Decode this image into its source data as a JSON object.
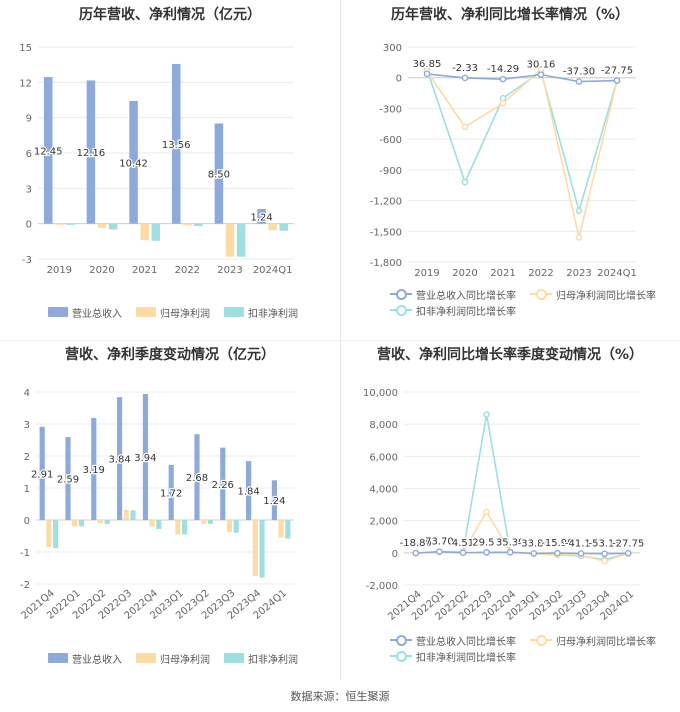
{
  "source_text": "数据来源：恒生聚源",
  "colors": {
    "revenue": "#8eaadc",
    "net_profit": "#fcdca4",
    "deducted_profit": "#9edfe1",
    "revenue_line": "#8eaadc",
    "net_line": "#fcdca4",
    "deducted_line": "#9edfe1"
  },
  "chart_data": [
    {
      "id": "annual_amounts",
      "type": "bar",
      "title": "历年营收、净利情况（亿元）",
      "categories": [
        "2019",
        "2020",
        "2021",
        "2022",
        "2023",
        "2024Q1"
      ],
      "yticks": [
        "15",
        "12",
        "9",
        "6",
        "3",
        "0",
        "-3"
      ],
      "ylim": [
        -3,
        15
      ],
      "series": [
        {
          "name": "营业总收入",
          "values": [
            12.45,
            12.16,
            10.42,
            13.56,
            8.5,
            1.24
          ],
          "labels": [
            "12.45",
            "12.16",
            "10.42",
            "13.56",
            "8.50",
            "1.24"
          ]
        },
        {
          "name": "归母净利润",
          "values": [
            -0.1,
            -0.35,
            -1.4,
            -0.15,
            -2.8,
            -0.55
          ]
        },
        {
          "name": "扣非净利润",
          "values": [
            -0.1,
            -0.5,
            -1.45,
            -0.2,
            -2.8,
            -0.6
          ]
        }
      ],
      "legend": "bottom"
    },
    {
      "id": "annual_growth",
      "type": "line",
      "title": "历年营收、净利同比增长率情况（%）",
      "categories": [
        "2019",
        "2020",
        "2021",
        "2022",
        "2023",
        "2024Q1"
      ],
      "yticks": [
        "300",
        "0",
        "-300",
        "-600",
        "-900",
        "-1,200",
        "-1,500",
        "-1,800"
      ],
      "ylim": [
        -1800,
        300
      ],
      "series": [
        {
          "name": "营业总收入同比增长率",
          "values": [
            36.85,
            -2.33,
            -14.29,
            30.16,
            -37.3,
            -27.75
          ],
          "labels": [
            "36.85",
            "-2.33",
            "-14.29",
            "30.16",
            "-37.30",
            "-27.75"
          ]
        },
        {
          "name": "归母净利润同比增长率",
          "values": [
            60,
            -480,
            -250,
            80,
            -1560,
            -30
          ]
        },
        {
          "name": "扣非净利润同比增长率",
          "values": [
            80,
            -1020,
            -200,
            60,
            -1300,
            -30
          ]
        }
      ],
      "legend": "bottom"
    },
    {
      "id": "quarterly_amounts",
      "type": "bar",
      "title": "营收、净利季度变动情况（亿元）",
      "categories": [
        "2021Q4",
        "2022Q1",
        "2022Q2",
        "2022Q3",
        "2022Q4",
        "2023Q1",
        "2023Q2",
        "2023Q3",
        "2023Q4",
        "2024Q1"
      ],
      "yticks": [
        "4",
        "3",
        "2",
        "1",
        "0",
        "-1",
        "-2"
      ],
      "ylim": [
        -2,
        4
      ],
      "series": [
        {
          "name": "营业总收入",
          "values": [
            2.91,
            2.59,
            3.19,
            3.84,
            3.94,
            1.72,
            2.68,
            2.26,
            1.84,
            1.24
          ],
          "labels": [
            "2.91",
            "2.59",
            "3.19",
            "3.84",
            "3.94",
            "1.72",
            "2.68",
            "2.26",
            "1.84",
            "1.24"
          ]
        },
        {
          "name": "归母净利润",
          "values": [
            -0.85,
            -0.2,
            -0.1,
            0.32,
            -0.2,
            -0.45,
            -0.12,
            -0.38,
            -1.75,
            -0.55
          ]
        },
        {
          "name": "扣非净利润",
          "values": [
            -0.88,
            -0.2,
            -0.12,
            0.3,
            -0.28,
            -0.45,
            -0.12,
            -0.4,
            -1.8,
            -0.58
          ]
        }
      ],
      "legend": "bottom"
    },
    {
      "id": "quarterly_growth",
      "type": "line",
      "title": "营收、净利同比增长率季度变动情况（%）",
      "categories": [
        "2021Q4",
        "2022Q1",
        "2022Q2",
        "2022Q3",
        "2022Q4",
        "2023Q1",
        "2023Q2",
        "2023Q3",
        "2023Q4",
        "2024Q1"
      ],
      "yticks": [
        "10,000",
        "8,000",
        "6,000",
        "4,000",
        "2,000",
        "0",
        "-2,000"
      ],
      "ylim": [
        -2000,
        10000
      ],
      "series": [
        {
          "name": "营业总收入同比增长率",
          "values": [
            -18.89,
            73.7,
            4.51,
            29.51,
            35.39,
            -33.84,
            -15.9,
            -41.16,
            -53.16,
            -27.75
          ],
          "labels": [
            "-18.89",
            "73.70",
            "4.51",
            "29.51",
            "35.39",
            "-33.84",
            "-15.90",
            "-41.16",
            "-53.16",
            "-27.75"
          ]
        },
        {
          "name": "归母净利润同比增长率",
          "values": [
            -20,
            60,
            50,
            2550,
            60,
            -60,
            -100,
            -150,
            -520,
            -30
          ]
        },
        {
          "name": "扣非净利润同比增长率",
          "values": [
            -20,
            80,
            60,
            8600,
            60,
            -60,
            -120,
            -200,
            -420,
            -30
          ]
        }
      ],
      "legend": "bottom"
    }
  ]
}
